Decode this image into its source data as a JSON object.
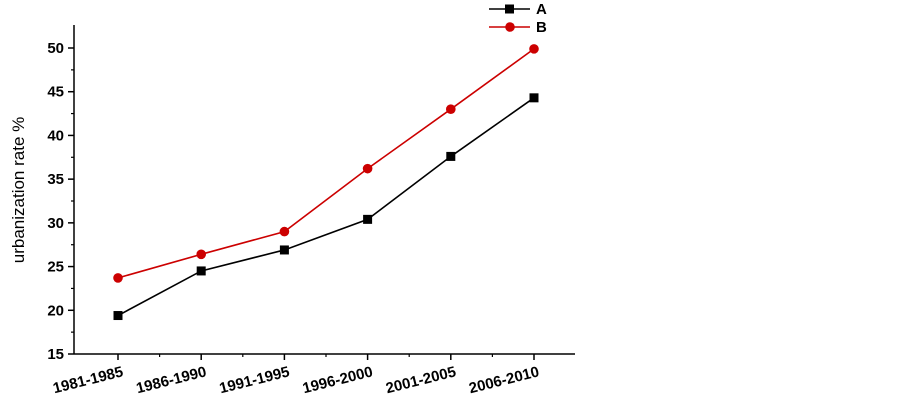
{
  "chart_data": {
    "type": "line",
    "title": "",
    "xlabel": "",
    "ylabel": "urbanization rate %",
    "categories": [
      "1981-1985",
      "1986-1990",
      "1991-1995",
      "1996-2000",
      "2001-2005",
      "2006-2010"
    ],
    "ylim": [
      15,
      50
    ],
    "yticks": [
      15,
      20,
      25,
      30,
      35,
      40,
      45,
      50
    ],
    "grid": false,
    "legend_position": "top-right",
    "series": [
      {
        "name": "A",
        "values": [
          19.4,
          24.5,
          26.9,
          30.4,
          37.6,
          44.3
        ],
        "color": "#000000",
        "marker": "square"
      },
      {
        "name": "B",
        "values": [
          23.7,
          26.4,
          29.0,
          36.2,
          43.0,
          49.9
        ],
        "color": "#cc0000",
        "marker": "circle"
      }
    ]
  }
}
